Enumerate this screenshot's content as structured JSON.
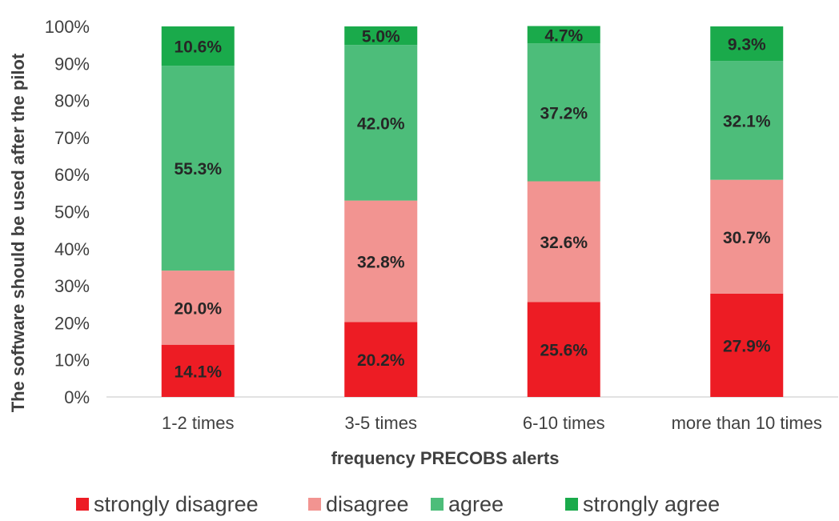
{
  "chart_data": {
    "type": "bar",
    "stacked": true,
    "categories": [
      "1-2 times",
      "3-5 times",
      "6-10 times",
      "more than 10 times"
    ],
    "series": [
      {
        "name": "strongly disagree",
        "color": "#ed1c24",
        "values": [
          14.1,
          20.2,
          25.6,
          27.9
        ]
      },
      {
        "name": "disagree",
        "color": "#f29491",
        "values": [
          20.0,
          32.8,
          32.6,
          30.7
        ]
      },
      {
        "name": "agree",
        "color": "#4dbd7a",
        "values": [
          55.3,
          42.0,
          37.2,
          32.1
        ]
      },
      {
        "name": "strongly agree",
        "color": "#1aaa4b",
        "values": [
          10.6,
          5.0,
          4.7,
          9.3
        ]
      }
    ],
    "data_labels": [
      [
        "14.1%",
        "20.2%",
        "25.6%",
        "27.9%"
      ],
      [
        "20.0%",
        "32.8%",
        "32.6%",
        "30.7%"
      ],
      [
        "55.3%",
        "42.0%",
        "37.2%",
        "32.1%"
      ],
      [
        "10.6%",
        "5.0%",
        "4.7%",
        "9.3%"
      ]
    ],
    "y_ticks": [
      "0%",
      "10%",
      "20%",
      "30%",
      "40%",
      "50%",
      "60%",
      "70%",
      "80%",
      "90%",
      "100%"
    ],
    "ylim": [
      0,
      100
    ],
    "xlabel": "frequency PRECOBS alerts",
    "ylabel": "The software should be used after the pilot",
    "legend_position": "bottom",
    "grid": false
  }
}
